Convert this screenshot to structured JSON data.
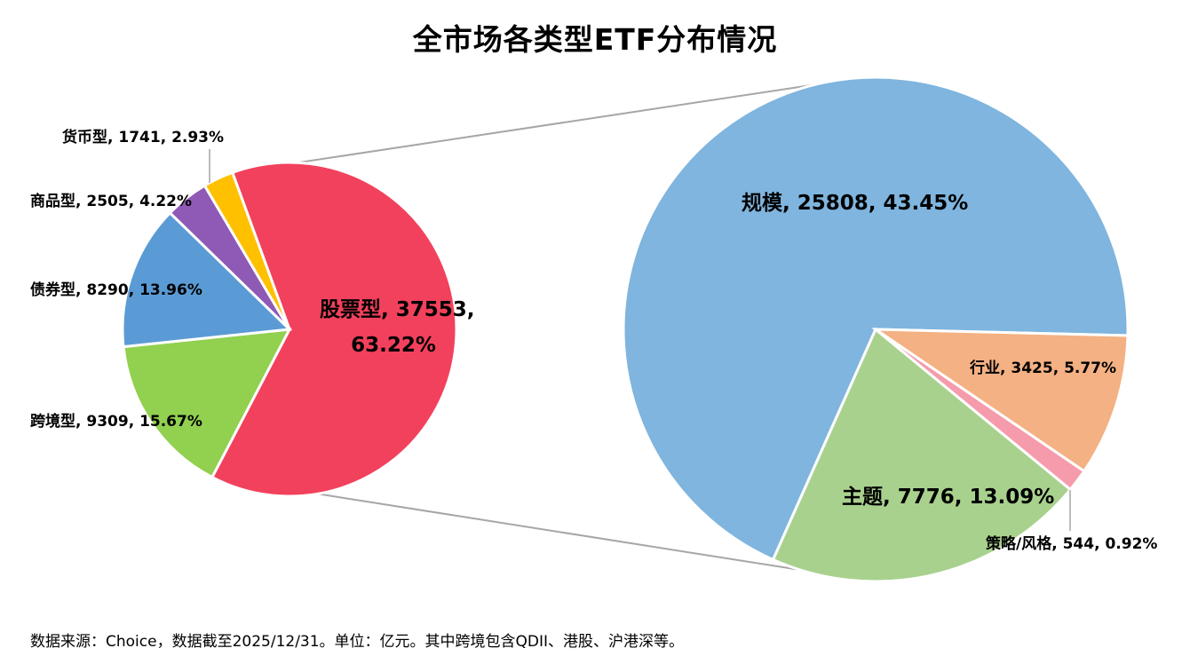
{
  "title": "全市场各类型ETF分布情况",
  "footnote": "数据来源：Choice，数据截至2025/12/31。单位：亿元。其中跨境包含QDII、港股、沪港深等。",
  "chart_data": [
    {
      "type": "pie",
      "title": "",
      "slices": [
        {
          "name": "股票型",
          "value": 37553,
          "percent": "63.22%",
          "label": "股票型, 37553,",
          "label2": "63.22%",
          "color": "#F2415C"
        },
        {
          "name": "跨境型",
          "value": 9309,
          "percent": "15.67%",
          "label": "跨境型, 9309, 15.67%",
          "color": "#92D050"
        },
        {
          "name": "债券型",
          "value": 8290,
          "percent": "13.96%",
          "label": "债券型, 8290, 13.96%",
          "color": "#5B9BD5"
        },
        {
          "name": "商品型",
          "value": 2505,
          "percent": "4.22%",
          "label": "商品型, 2505, 4.22%",
          "color": "#8E5AB5"
        },
        {
          "name": "货币型",
          "value": 1741,
          "percent": "2.93%",
          "label": "货币型, 1741, 2.93%",
          "color": "#FFC000"
        }
      ]
    },
    {
      "type": "pie",
      "title": "",
      "slices": [
        {
          "name": "规模",
          "value": 25808,
          "percent": "43.45%",
          "label": "规模, 25808, 43.45%",
          "color": "#7FB5DE"
        },
        {
          "name": "行业",
          "value": 3425,
          "percent": "5.77%",
          "label": "行业, 3425, 5.77%",
          "color": "#F4B183"
        },
        {
          "name": "策略/风格",
          "value": 544,
          "percent": "0.92%",
          "label": "策略/风格, 544, 0.92%",
          "color": "#F59BAB"
        },
        {
          "name": "主题",
          "value": 7776,
          "percent": "13.09%",
          "label": "主题, 7776, 13.09%",
          "color": "#A9D18E"
        }
      ]
    }
  ]
}
